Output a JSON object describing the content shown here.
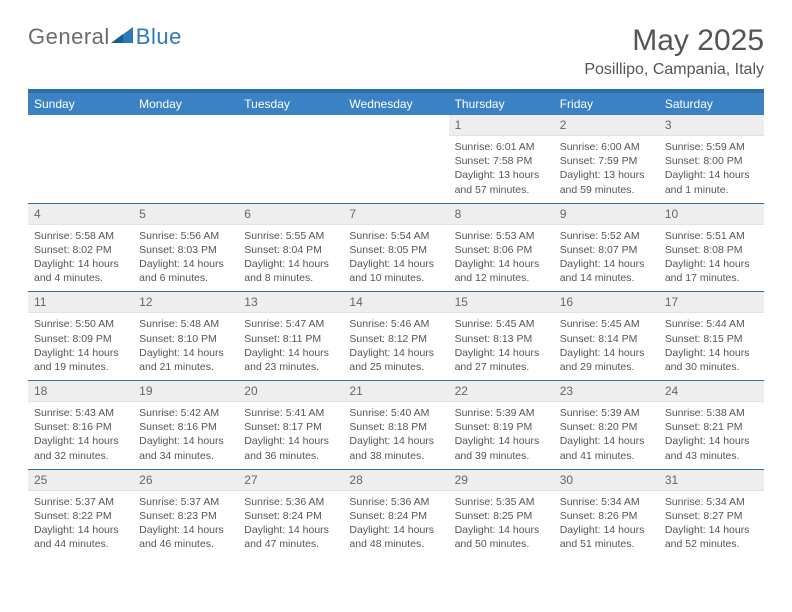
{
  "logo": {
    "part1": "General",
    "part2": "Blue"
  },
  "title": "May 2025",
  "location": "Posillipo, Campania, Italy",
  "colors": {
    "header_bg": "#3a82c4",
    "header_border": "#2f6fa8",
    "daynum_bg": "#eeeeee",
    "text": "#555555",
    "logo_gray": "#6c6c6c",
    "logo_blue": "#2f77bb"
  },
  "weekdays": [
    "Sunday",
    "Monday",
    "Tuesday",
    "Wednesday",
    "Thursday",
    "Friday",
    "Saturday"
  ],
  "cells": [
    {
      "n": "",
      "sr": "",
      "ss": "",
      "dl": ""
    },
    {
      "n": "",
      "sr": "",
      "ss": "",
      "dl": ""
    },
    {
      "n": "",
      "sr": "",
      "ss": "",
      "dl": ""
    },
    {
      "n": "",
      "sr": "",
      "ss": "",
      "dl": ""
    },
    {
      "n": "1",
      "sr": "Sunrise: 6:01 AM",
      "ss": "Sunset: 7:58 PM",
      "dl": "Daylight: 13 hours and 57 minutes."
    },
    {
      "n": "2",
      "sr": "Sunrise: 6:00 AM",
      "ss": "Sunset: 7:59 PM",
      "dl": "Daylight: 13 hours and 59 minutes."
    },
    {
      "n": "3",
      "sr": "Sunrise: 5:59 AM",
      "ss": "Sunset: 8:00 PM",
      "dl": "Daylight: 14 hours and 1 minute."
    },
    {
      "n": "4",
      "sr": "Sunrise: 5:58 AM",
      "ss": "Sunset: 8:02 PM",
      "dl": "Daylight: 14 hours and 4 minutes."
    },
    {
      "n": "5",
      "sr": "Sunrise: 5:56 AM",
      "ss": "Sunset: 8:03 PM",
      "dl": "Daylight: 14 hours and 6 minutes."
    },
    {
      "n": "6",
      "sr": "Sunrise: 5:55 AM",
      "ss": "Sunset: 8:04 PM",
      "dl": "Daylight: 14 hours and 8 minutes."
    },
    {
      "n": "7",
      "sr": "Sunrise: 5:54 AM",
      "ss": "Sunset: 8:05 PM",
      "dl": "Daylight: 14 hours and 10 minutes."
    },
    {
      "n": "8",
      "sr": "Sunrise: 5:53 AM",
      "ss": "Sunset: 8:06 PM",
      "dl": "Daylight: 14 hours and 12 minutes."
    },
    {
      "n": "9",
      "sr": "Sunrise: 5:52 AM",
      "ss": "Sunset: 8:07 PM",
      "dl": "Daylight: 14 hours and 14 minutes."
    },
    {
      "n": "10",
      "sr": "Sunrise: 5:51 AM",
      "ss": "Sunset: 8:08 PM",
      "dl": "Daylight: 14 hours and 17 minutes."
    },
    {
      "n": "11",
      "sr": "Sunrise: 5:50 AM",
      "ss": "Sunset: 8:09 PM",
      "dl": "Daylight: 14 hours and 19 minutes."
    },
    {
      "n": "12",
      "sr": "Sunrise: 5:48 AM",
      "ss": "Sunset: 8:10 PM",
      "dl": "Daylight: 14 hours and 21 minutes."
    },
    {
      "n": "13",
      "sr": "Sunrise: 5:47 AM",
      "ss": "Sunset: 8:11 PM",
      "dl": "Daylight: 14 hours and 23 minutes."
    },
    {
      "n": "14",
      "sr": "Sunrise: 5:46 AM",
      "ss": "Sunset: 8:12 PM",
      "dl": "Daylight: 14 hours and 25 minutes."
    },
    {
      "n": "15",
      "sr": "Sunrise: 5:45 AM",
      "ss": "Sunset: 8:13 PM",
      "dl": "Daylight: 14 hours and 27 minutes."
    },
    {
      "n": "16",
      "sr": "Sunrise: 5:45 AM",
      "ss": "Sunset: 8:14 PM",
      "dl": "Daylight: 14 hours and 29 minutes."
    },
    {
      "n": "17",
      "sr": "Sunrise: 5:44 AM",
      "ss": "Sunset: 8:15 PM",
      "dl": "Daylight: 14 hours and 30 minutes."
    },
    {
      "n": "18",
      "sr": "Sunrise: 5:43 AM",
      "ss": "Sunset: 8:16 PM",
      "dl": "Daylight: 14 hours and 32 minutes."
    },
    {
      "n": "19",
      "sr": "Sunrise: 5:42 AM",
      "ss": "Sunset: 8:16 PM",
      "dl": "Daylight: 14 hours and 34 minutes."
    },
    {
      "n": "20",
      "sr": "Sunrise: 5:41 AM",
      "ss": "Sunset: 8:17 PM",
      "dl": "Daylight: 14 hours and 36 minutes."
    },
    {
      "n": "21",
      "sr": "Sunrise: 5:40 AM",
      "ss": "Sunset: 8:18 PM",
      "dl": "Daylight: 14 hours and 38 minutes."
    },
    {
      "n": "22",
      "sr": "Sunrise: 5:39 AM",
      "ss": "Sunset: 8:19 PM",
      "dl": "Daylight: 14 hours and 39 minutes."
    },
    {
      "n": "23",
      "sr": "Sunrise: 5:39 AM",
      "ss": "Sunset: 8:20 PM",
      "dl": "Daylight: 14 hours and 41 minutes."
    },
    {
      "n": "24",
      "sr": "Sunrise: 5:38 AM",
      "ss": "Sunset: 8:21 PM",
      "dl": "Daylight: 14 hours and 43 minutes."
    },
    {
      "n": "25",
      "sr": "Sunrise: 5:37 AM",
      "ss": "Sunset: 8:22 PM",
      "dl": "Daylight: 14 hours and 44 minutes."
    },
    {
      "n": "26",
      "sr": "Sunrise: 5:37 AM",
      "ss": "Sunset: 8:23 PM",
      "dl": "Daylight: 14 hours and 46 minutes."
    },
    {
      "n": "27",
      "sr": "Sunrise: 5:36 AM",
      "ss": "Sunset: 8:24 PM",
      "dl": "Daylight: 14 hours and 47 minutes."
    },
    {
      "n": "28",
      "sr": "Sunrise: 5:36 AM",
      "ss": "Sunset: 8:24 PM",
      "dl": "Daylight: 14 hours and 48 minutes."
    },
    {
      "n": "29",
      "sr": "Sunrise: 5:35 AM",
      "ss": "Sunset: 8:25 PM",
      "dl": "Daylight: 14 hours and 50 minutes."
    },
    {
      "n": "30",
      "sr": "Sunrise: 5:34 AM",
      "ss": "Sunset: 8:26 PM",
      "dl": "Daylight: 14 hours and 51 minutes."
    },
    {
      "n": "31",
      "sr": "Sunrise: 5:34 AM",
      "ss": "Sunset: 8:27 PM",
      "dl": "Daylight: 14 hours and 52 minutes."
    }
  ]
}
